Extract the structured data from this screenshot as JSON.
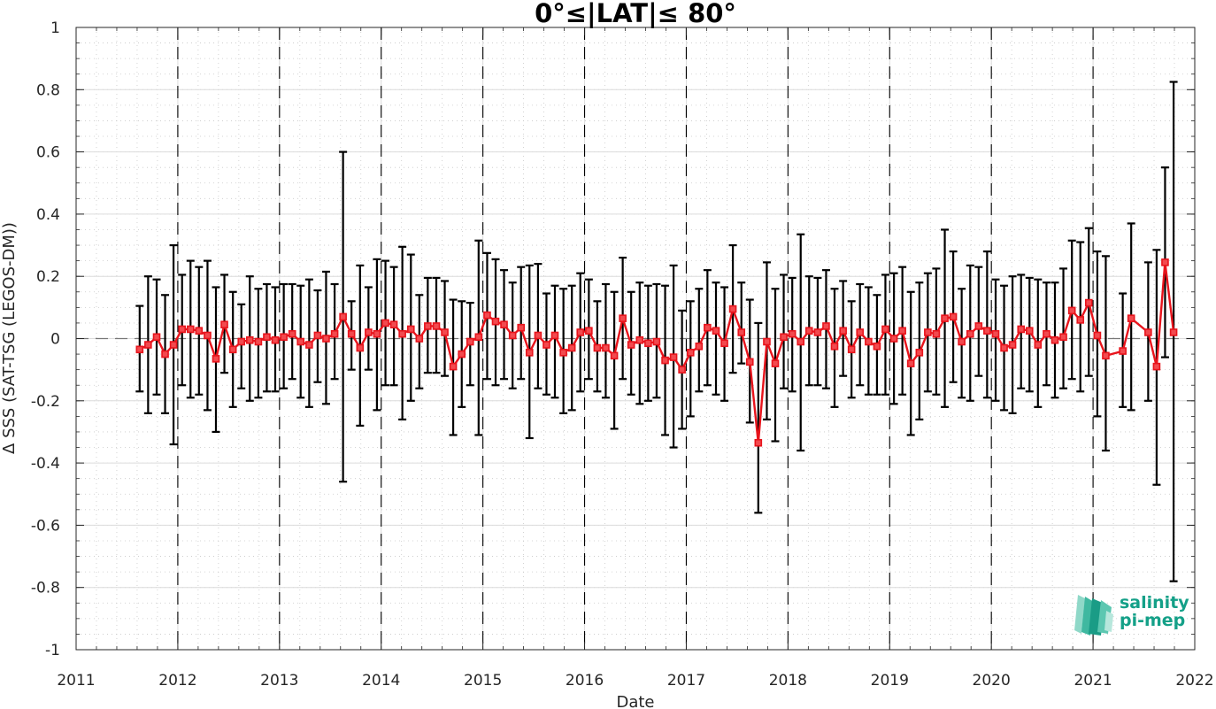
{
  "chart_data": {
    "type": "line",
    "title": "0°≤|LAT|≤ 80°",
    "xlabel": "Date",
    "ylabel": "Δ SSS (SAT-TSG (LEGOS-DM))",
    "xlim": [
      2011,
      2022
    ],
    "ylim": [
      -1,
      1
    ],
    "x_ticks": [
      "2011",
      "2012",
      "2013",
      "2014",
      "2015",
      "2016",
      "2017",
      "2018",
      "2019",
      "2020",
      "2021",
      "2022"
    ],
    "y_ticks": [
      "-1",
      "-0.8",
      "-0.6",
      "-0.4",
      "-0.2",
      "0",
      "0.2",
      "0.4",
      "0.6",
      "0.8",
      "1"
    ],
    "grid": true,
    "zero_line": 0,
    "year_lines": [
      2012,
      2013,
      2014,
      2015,
      2016,
      2017,
      2018,
      2019,
      2020,
      2021
    ],
    "colors": {
      "series": "#e8141c",
      "errorbars": "#000000",
      "zero_line": "#777777"
    },
    "series": [
      {
        "x": [
          2011.625,
          2011.708,
          2011.792,
          2011.875,
          2011.958,
          2012.042,
          2012.125,
          2012.208,
          2012.292,
          2012.375,
          2012.458,
          2012.542,
          2012.625,
          2012.708,
          2012.792,
          2012.875,
          2012.958,
          2013.042,
          2013.125,
          2013.208,
          2013.292,
          2013.375,
          2013.458,
          2013.542,
          2013.625,
          2013.708,
          2013.792,
          2013.875,
          2013.958,
          2014.042,
          2014.125,
          2014.208,
          2014.292,
          2014.375,
          2014.458,
          2014.542,
          2014.625,
          2014.708,
          2014.792,
          2014.875,
          2014.958,
          2015.042,
          2015.125,
          2015.208,
          2015.292,
          2015.375,
          2015.458,
          2015.542,
          2015.625,
          2015.708,
          2015.792,
          2015.875,
          2015.958,
          2016.042,
          2016.125,
          2016.208,
          2016.292,
          2016.375,
          2016.458,
          2016.542,
          2016.625,
          2016.708,
          2016.792,
          2016.875,
          2016.958,
          2017.042,
          2017.125,
          2017.208,
          2017.292,
          2017.375,
          2017.458,
          2017.542,
          2017.625,
          2017.708,
          2017.792,
          2017.875,
          2017.958,
          2018.042,
          2018.125,
          2018.208,
          2018.292,
          2018.375,
          2018.458,
          2018.542,
          2018.625,
          2018.708,
          2018.792,
          2018.875,
          2018.958,
          2019.042,
          2019.125,
          2019.208,
          2019.292,
          2019.375,
          2019.458,
          2019.542,
          2019.625,
          2019.708,
          2019.792,
          2019.875,
          2019.958,
          2020.042,
          2020.125,
          2020.208,
          2020.292,
          2020.375,
          2020.458,
          2020.542,
          2020.625,
          2020.708,
          2020.792,
          2020.875,
          2020.958,
          2021.042,
          2021.125,
          2021.292,
          2021.375,
          2021.542,
          2021.625,
          2021.708,
          2021.792
        ],
        "y": [
          -0.035,
          -0.02,
          0.005,
          -0.05,
          -0.02,
          0.03,
          0.03,
          0.025,
          0.01,
          -0.065,
          0.045,
          -0.035,
          -0.01,
          -0.005,
          -0.01,
          0.005,
          -0.005,
          0.005,
          0.015,
          -0.01,
          -0.02,
          0.01,
          0.0,
          0.015,
          0.07,
          0.015,
          -0.03,
          0.02,
          0.015,
          0.05,
          0.045,
          0.015,
          0.03,
          0.0,
          0.04,
          0.04,
          0.02,
          -0.09,
          -0.05,
          -0.01,
          0.005,
          0.075,
          0.055,
          0.045,
          0.01,
          0.035,
          -0.045,
          0.01,
          -0.02,
          0.01,
          -0.045,
          -0.03,
          0.02,
          0.025,
          -0.03,
          -0.03,
          -0.055,
          0.065,
          -0.02,
          -0.005,
          -0.015,
          -0.01,
          -0.07,
          -0.06,
          -0.1,
          -0.045,
          -0.025,
          0.035,
          0.025,
          -0.015,
          0.095,
          0.02,
          -0.075,
          -0.335,
          -0.01,
          -0.08,
          0.005,
          0.015,
          -0.01,
          0.025,
          0.02,
          0.04,
          -0.025,
          0.025,
          -0.035,
          0.02,
          -0.01,
          -0.025,
          0.03,
          0.0,
          0.025,
          -0.08,
          -0.045,
          0.02,
          0.015,
          0.065,
          0.07,
          -0.01,
          0.015,
          0.04,
          0.025,
          0.015,
          -0.03,
          -0.02,
          0.03,
          0.025,
          -0.02,
          0.015,
          -0.005,
          0.005,
          0.09,
          0.06,
          0.115,
          0.01,
          -0.055,
          -0.04,
          0.065,
          0.02,
          -0.09,
          0.245,
          0.02
        ],
        "err_low": [
          -0.17,
          -0.24,
          -0.18,
          -0.24,
          -0.34,
          -0.15,
          -0.19,
          -0.18,
          -0.23,
          -0.3,
          -0.11,
          -0.22,
          -0.16,
          -0.2,
          -0.19,
          -0.17,
          -0.17,
          -0.16,
          -0.13,
          -0.19,
          -0.22,
          -0.14,
          -0.21,
          -0.13,
          -0.46,
          -0.1,
          -0.28,
          -0.1,
          -0.23,
          -0.15,
          -0.15,
          -0.26,
          -0.2,
          -0.16,
          -0.11,
          -0.11,
          -0.12,
          -0.31,
          -0.22,
          -0.15,
          -0.31,
          -0.13,
          -0.15,
          -0.13,
          -0.16,
          -0.13,
          -0.32,
          -0.16,
          -0.18,
          -0.19,
          -0.24,
          -0.23,
          -0.17,
          -0.13,
          -0.17,
          -0.19,
          -0.29,
          -0.13,
          -0.18,
          -0.21,
          -0.2,
          -0.19,
          -0.31,
          -0.35,
          -0.29,
          -0.25,
          -0.17,
          -0.15,
          -0.18,
          -0.2,
          -0.11,
          -0.08,
          -0.27,
          -0.56,
          -0.26,
          -0.33,
          -0.16,
          -0.17,
          -0.36,
          -0.15,
          -0.15,
          -0.16,
          -0.22,
          -0.12,
          -0.19,
          -0.15,
          -0.18,
          -0.18,
          -0.18,
          -0.21,
          -0.18,
          -0.31,
          -0.26,
          -0.17,
          -0.18,
          -0.22,
          -0.14,
          -0.19,
          -0.2,
          -0.12,
          -0.19,
          -0.2,
          -0.23,
          -0.24,
          -0.16,
          -0.17,
          -0.22,
          -0.15,
          -0.19,
          -0.16,
          -0.13,
          -0.17,
          -0.12,
          -0.25,
          -0.36,
          -0.22,
          -0.23,
          -0.2,
          -0.47,
          -0.06,
          -0.78
        ],
        "err_high": [
          0.105,
          0.2,
          0.19,
          0.14,
          0.3,
          0.205,
          0.25,
          0.23,
          0.25,
          0.165,
          0.205,
          0.15,
          0.11,
          0.2,
          0.16,
          0.175,
          0.165,
          0.175,
          0.175,
          0.17,
          0.19,
          0.155,
          0.215,
          0.175,
          0.6,
          0.12,
          0.235,
          0.165,
          0.255,
          0.25,
          0.23,
          0.295,
          0.27,
          0.14,
          0.195,
          0.195,
          0.185,
          0.125,
          0.12,
          0.115,
          0.315,
          0.275,
          0.255,
          0.22,
          0.18,
          0.23,
          0.235,
          0.24,
          0.145,
          0.17,
          0.16,
          0.17,
          0.21,
          0.19,
          0.12,
          0.175,
          0.15,
          0.26,
          0.15,
          0.18,
          0.17,
          0.175,
          0.17,
          0.235,
          0.09,
          0.12,
          0.16,
          0.22,
          0.18,
          0.165,
          0.3,
          0.18,
          0.125,
          0.05,
          0.245,
          0.16,
          0.205,
          0.195,
          0.335,
          0.2,
          0.195,
          0.22,
          0.16,
          0.185,
          0.12,
          0.175,
          0.165,
          0.14,
          0.205,
          0.21,
          0.23,
          0.15,
          0.18,
          0.21,
          0.225,
          0.35,
          0.28,
          0.16,
          0.235,
          0.23,
          0.28,
          0.19,
          0.17,
          0.2,
          0.205,
          0.195,
          0.19,
          0.18,
          0.18,
          0.225,
          0.315,
          0.31,
          0.355,
          0.28,
          0.265,
          0.145,
          0.37,
          0.245,
          0.285,
          0.55,
          0.825
        ]
      }
    ]
  },
  "logo": {
    "line1": "salinity",
    "line2": "pi-mep",
    "color": "#14a088"
  }
}
